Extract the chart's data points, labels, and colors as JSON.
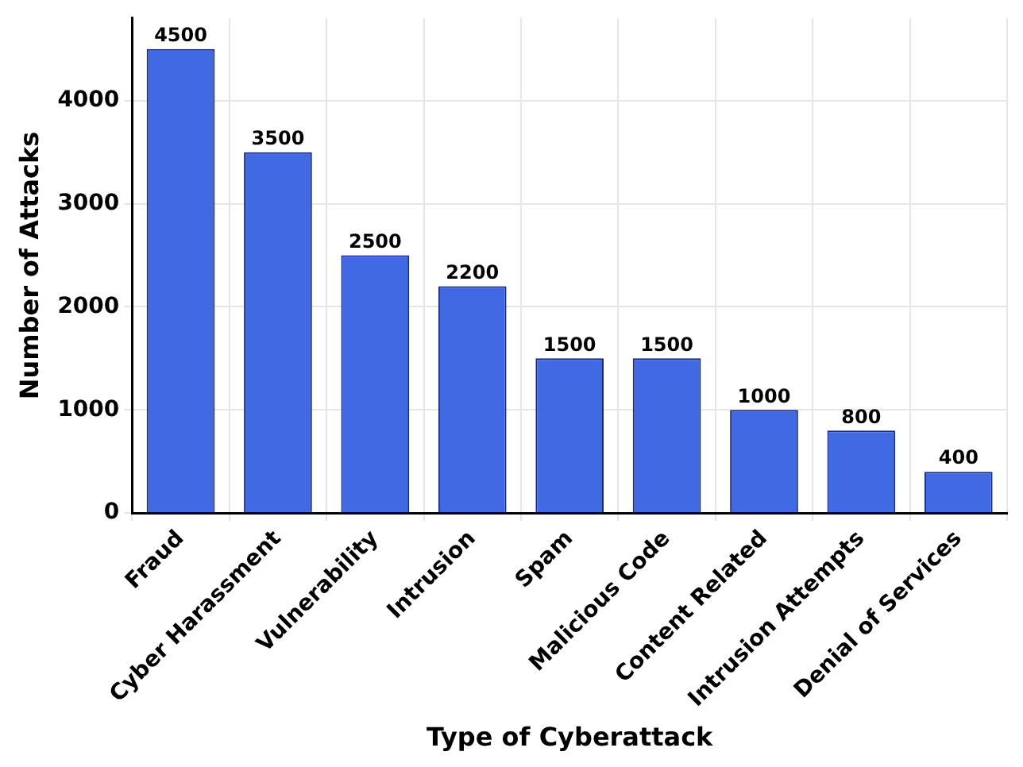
{
  "chart_data": {
    "type": "bar",
    "xlabel": "Type of Cyberattack",
    "ylabel": "Number of Attacks",
    "categories": [
      "Fraud",
      "Cyber Harassment",
      "Vulnerability",
      "Intrusion",
      "Spam",
      "Malicious Code",
      "Content Related",
      "Intrusion Attempts",
      "Denial of Services"
    ],
    "values": [
      4500,
      3500,
      2500,
      2200,
      1500,
      1500,
      1000,
      800,
      400
    ],
    "color": "#4169e1",
    "ylim": [
      0,
      4800
    ],
    "yticks": [
      0,
      1000,
      2000,
      3000,
      4000
    ],
    "grid": true,
    "data_labels": true,
    "legend": false
  }
}
